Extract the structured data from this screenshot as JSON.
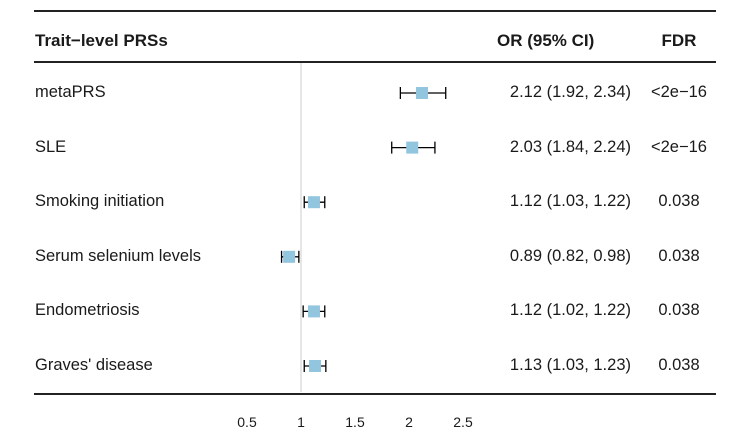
{
  "headers": {
    "trait": "Trait−level PRSs",
    "or": "OR (95% CI)",
    "fdr": "FDR"
  },
  "colors": {
    "marker": "#92c5de",
    "whisker": "#000000",
    "reference_line": "#cccccc",
    "rule": "#222222"
  },
  "chart_data": {
    "type": "forest",
    "xlabel": "",
    "title": "",
    "xlim": [
      0.35,
      2.6
    ],
    "xticks": [
      0.5,
      1,
      1.5,
      2,
      2.5
    ],
    "xtick_labels": [
      "0.5",
      "1",
      "1.5",
      "2",
      "2.5"
    ],
    "reference_value": 1,
    "rows": [
      {
        "trait": "metaPRS",
        "or": 2.12,
        "lower": 1.92,
        "upper": 2.34,
        "or_text": "2.12 (1.92, 2.34)",
        "fdr": "<2e−16"
      },
      {
        "trait": "SLE",
        "or": 2.03,
        "lower": 1.84,
        "upper": 2.24,
        "or_text": "2.03 (1.84, 2.24)",
        "fdr": "<2e−16"
      },
      {
        "trait": "Smoking initiation",
        "or": 1.12,
        "lower": 1.03,
        "upper": 1.22,
        "or_text": "1.12 (1.03, 1.22)",
        "fdr": "0.038"
      },
      {
        "trait": "Serum selenium levels",
        "or": 0.89,
        "lower": 0.82,
        "upper": 0.98,
        "or_text": "0.89 (0.82, 0.98)",
        "fdr": "0.038"
      },
      {
        "trait": "Endometriosis",
        "or": 1.12,
        "lower": 1.02,
        "upper": 1.22,
        "or_text": "1.12 (1.02, 1.22)",
        "fdr": "0.038"
      },
      {
        "trait": "Graves' disease",
        "or": 1.13,
        "lower": 1.03,
        "upper": 1.23,
        "or_text": "1.13 (1.03, 1.23)",
        "fdr": "0.038"
      }
    ]
  }
}
